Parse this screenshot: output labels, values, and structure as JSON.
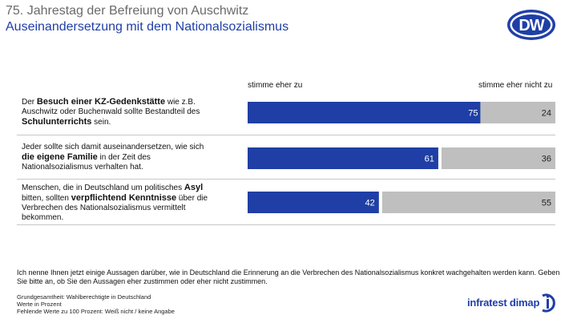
{
  "header": {
    "title": "75. Jahrestag der Befreiung von Auschwitz",
    "subtitle": "Auseinandersetzung mit dem Nationalsozialismus",
    "logo_text": "DW"
  },
  "colors": {
    "agree": "#1f3fa6",
    "disagree": "#bfbfbf",
    "title_grey": "#6a6a6a",
    "brand_blue": "#1f3fa6"
  },
  "chart_data": {
    "type": "bar",
    "orientation": "horizontal-diverging",
    "series": [
      {
        "name": "stimme eher zu",
        "values": [
          75,
          61,
          42
        ]
      },
      {
        "name": "stimme eher nicht zu",
        "values": [
          24,
          36,
          55
        ]
      }
    ],
    "categories": [
      "Der Besuch einer KZ-Gedenkstätte wie z.B. Auschwitz oder Buchenwald sollte Bestandteil des Schulunterrichts sein.",
      "Jeder sollte sich damit auseinandersetzen, wie sich die eigene Familie in der Zeit des Nationalsozialismus verhalten hat.",
      "Menschen, die in Deutschland um politisches Asyl bitten, sollten verpflichtend Kenntnisse über die Verbrechen des Nationalsozialismus vermittelt bekommen."
    ],
    "legend_position": "top"
  },
  "statements": [
    {
      "p1": "Der ",
      "b1": "Besuch einer KZ-Gedenkstätte",
      "p2": " wie z.B. Auschwitz oder Buchenwald sollte Bestandteil des ",
      "b2": "Schulunterrichts",
      "p3": " sein."
    },
    {
      "p1": "Jeder sollte sich damit auseinandersetzen, wie sich ",
      "b1": "die eigene Familie",
      "p2": " in der Zeit des Nationalsozialismus verhalten hat.",
      "b2": "",
      "p3": ""
    },
    {
      "p1": "Menschen, die in Deutschland um politisches ",
      "b1": "Asyl",
      "p2": " bitten, sollten ",
      "b2": "verpflichtend Kenntnisse",
      "p3": " über die Verbrechen des Nationalsozialismus vermittelt bekommen."
    }
  ],
  "footer": {
    "question": "Ich nenne Ihnen jetzt einige Aussagen darüber, wie in Deutschland die Erinnerung an die Verbrechen des Nationalsozialismus konkret wachgehalten werden kann. Geben Sie bitte an, ob Sie den Aussagen eher zustimmen oder eher nicht zustimmen.",
    "base": "Grundgesamtheit: Wahlberechtigte in Deutschland",
    "unit": "Werte in Prozent",
    "missing": "Fehlende Werte zu 100 Prozent: Weiß nicht / keine Angabe",
    "brand": "infratest dimap"
  }
}
